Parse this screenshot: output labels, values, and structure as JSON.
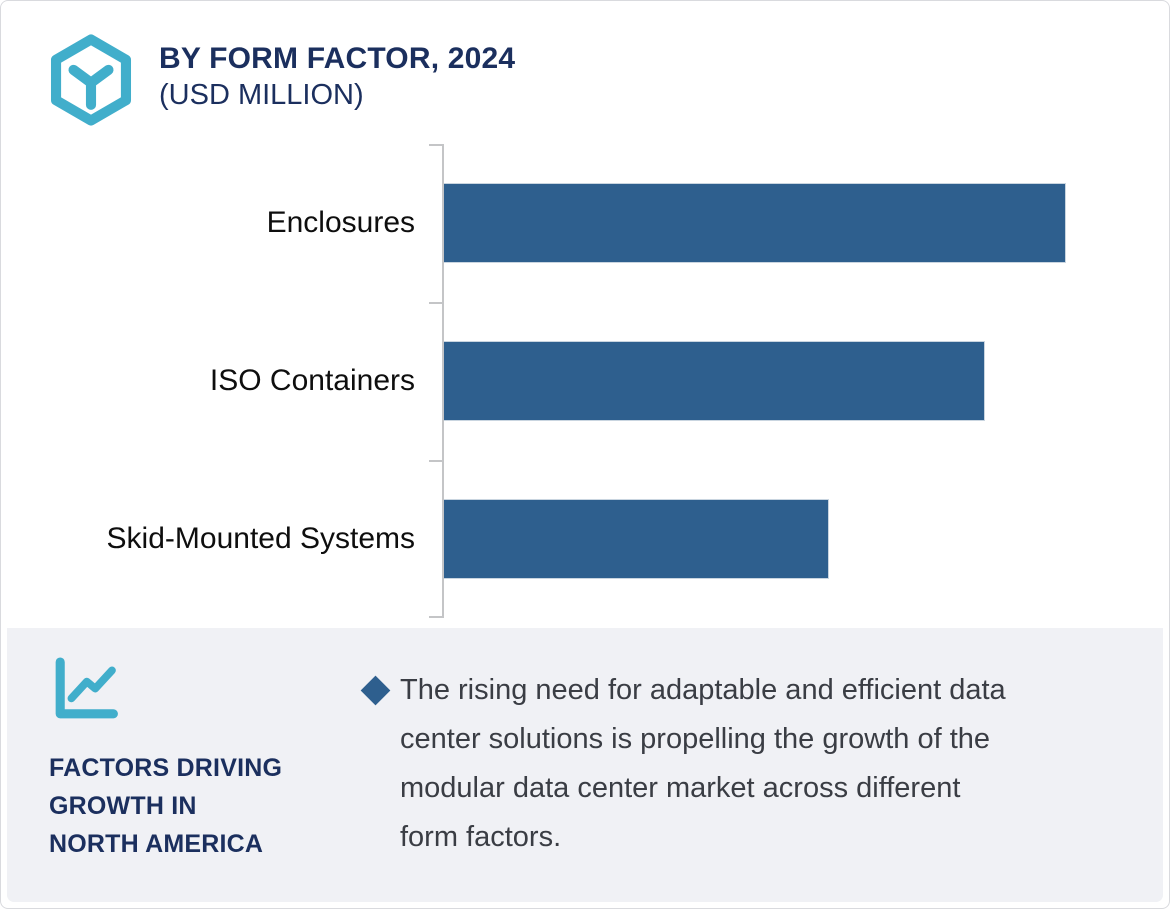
{
  "header": {
    "title": "BY FORM FACTOR, 2024",
    "subtitle": "(USD MILLION)",
    "icon": "box-hexagon-icon"
  },
  "chart_data": {
    "type": "bar",
    "orientation": "horizontal",
    "title": "BY FORM FACTOR, 2024 (USD MILLION)",
    "categories": [
      "Enclosures",
      "ISO Containers",
      "Skid-Mounted Systems"
    ],
    "values": [
      100,
      87,
      62
    ],
    "value_note": "no numeric axis shown; values estimated relative to longest bar = 100",
    "xlim": [
      0,
      115
    ],
    "grid": false,
    "data_labels": false,
    "bar_color": "#2e5f8e",
    "axis_color": "#c4c5c7",
    "legend": "none"
  },
  "factors": {
    "icon": "line-chart-icon",
    "heading": "FACTORS DRIVING\nGROWTH IN\nNORTH AMERICA",
    "insights": [
      "The rising need for adaptable and efficient data\ncenter solutions is propelling the growth of the\nmodular data center market across different\nform factors."
    ]
  },
  "colors": {
    "navy": "#1b2f5e",
    "cyan": "#41aecb",
    "bar_blue": "#2e5f8e",
    "panel_bg": "#f0f1f5",
    "body_text": "#3a3d44"
  }
}
